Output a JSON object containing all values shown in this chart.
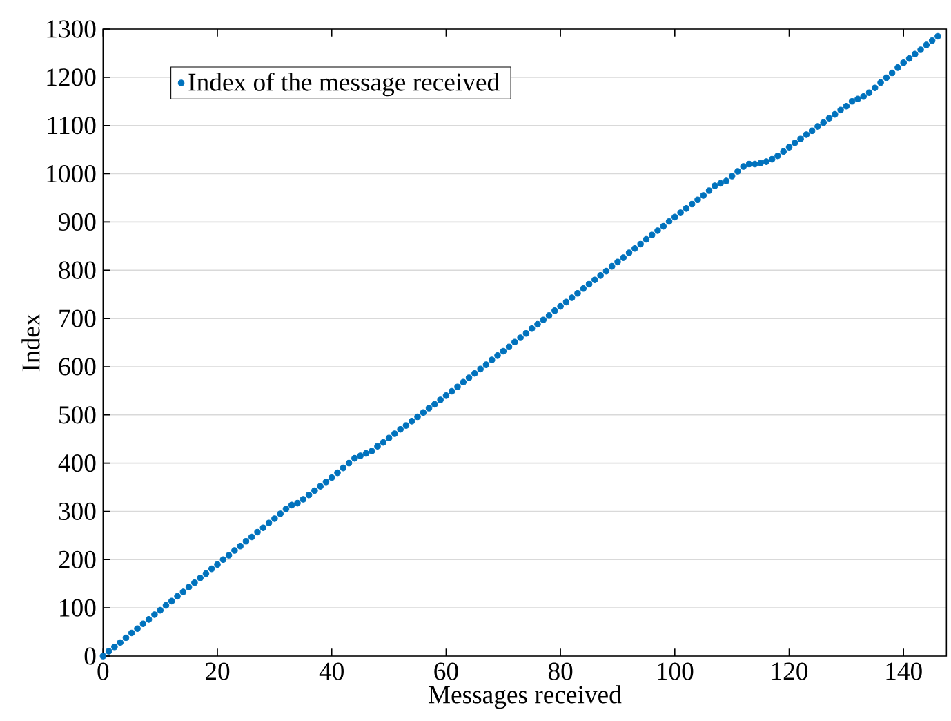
{
  "chart_data": {
    "type": "scatter",
    "xlabel": "Messages received",
    "ylabel": "Index",
    "xlim": [
      0,
      147.5
    ],
    "ylim": [
      0,
      1300
    ],
    "xticks": [
      0,
      20,
      40,
      60,
      80,
      100,
      120,
      140
    ],
    "yticks": [
      0,
      100,
      200,
      300,
      400,
      500,
      600,
      700,
      800,
      900,
      1000,
      1100,
      1200,
      1300
    ],
    "grid": "y",
    "legend": "top left",
    "marker": "circle",
    "series": [
      {
        "name": "Index of the message received",
        "color": "#0072bd",
        "x": [
          0,
          1,
          2,
          3,
          4,
          5,
          6,
          7,
          8,
          9,
          10,
          11,
          12,
          13,
          14,
          15,
          16,
          17,
          18,
          19,
          20,
          21,
          22,
          23,
          24,
          25,
          26,
          27,
          28,
          29,
          30,
          31,
          32,
          33,
          34,
          35,
          36,
          37,
          38,
          39,
          40,
          41,
          42,
          43,
          44,
          45,
          46,
          47,
          48,
          49,
          50,
          51,
          52,
          53,
          54,
          55,
          56,
          57,
          58,
          59,
          60,
          61,
          62,
          63,
          64,
          65,
          66,
          67,
          68,
          69,
          70,
          71,
          72,
          73,
          74,
          75,
          76,
          77,
          78,
          79,
          80,
          81,
          82,
          83,
          84,
          85,
          86,
          87,
          88,
          89,
          90,
          91,
          92,
          93,
          94,
          95,
          96,
          97,
          98,
          99,
          100,
          101,
          102,
          103,
          104,
          105,
          106,
          107,
          108,
          109,
          110,
          111,
          112,
          113,
          114,
          115,
          116,
          117,
          118,
          119,
          120,
          121,
          122,
          123,
          124,
          125,
          126,
          127,
          128,
          129,
          130,
          131,
          132,
          133,
          134,
          135,
          136,
          137,
          138,
          139,
          140,
          141,
          142,
          143,
          144,
          145,
          146
        ],
        "values": [
          0,
          10,
          19,
          28,
          38,
          48,
          57,
          67,
          76,
          86,
          95,
          105,
          114,
          124,
          133,
          143,
          152,
          162,
          171,
          181,
          190,
          200,
          209,
          219,
          228,
          238,
          247,
          257,
          266,
          276,
          285,
          295,
          305,
          313,
          317,
          325,
          334,
          343,
          352,
          361,
          370,
          380,
          390,
          400,
          410,
          415,
          420,
          425,
          435,
          443,
          452,
          461,
          470,
          478,
          487,
          496,
          505,
          514,
          522,
          531,
          540,
          549,
          558,
          568,
          577,
          586,
          595,
          604,
          614,
          623,
          632,
          641,
          651,
          660,
          669,
          679,
          688,
          697,
          706,
          716,
          725,
          734,
          743,
          752,
          762,
          771,
          780,
          789,
          798,
          808,
          817,
          826,
          836,
          845,
          854,
          864,
          873,
          882,
          891,
          901,
          910,
          919,
          928,
          937,
          946,
          955,
          965,
          975,
          980,
          985,
          995,
          1005,
          1015,
          1020,
          1020,
          1022,
          1025,
          1030,
          1037,
          1046,
          1055,
          1064,
          1072,
          1081,
          1089,
          1098,
          1106,
          1115,
          1123,
          1132,
          1140,
          1150,
          1155,
          1160,
          1168,
          1178,
          1189,
          1199,
          1209,
          1220,
          1230,
          1239,
          1248,
          1257,
          1267,
          1276,
          1285
        ]
      }
    ]
  }
}
